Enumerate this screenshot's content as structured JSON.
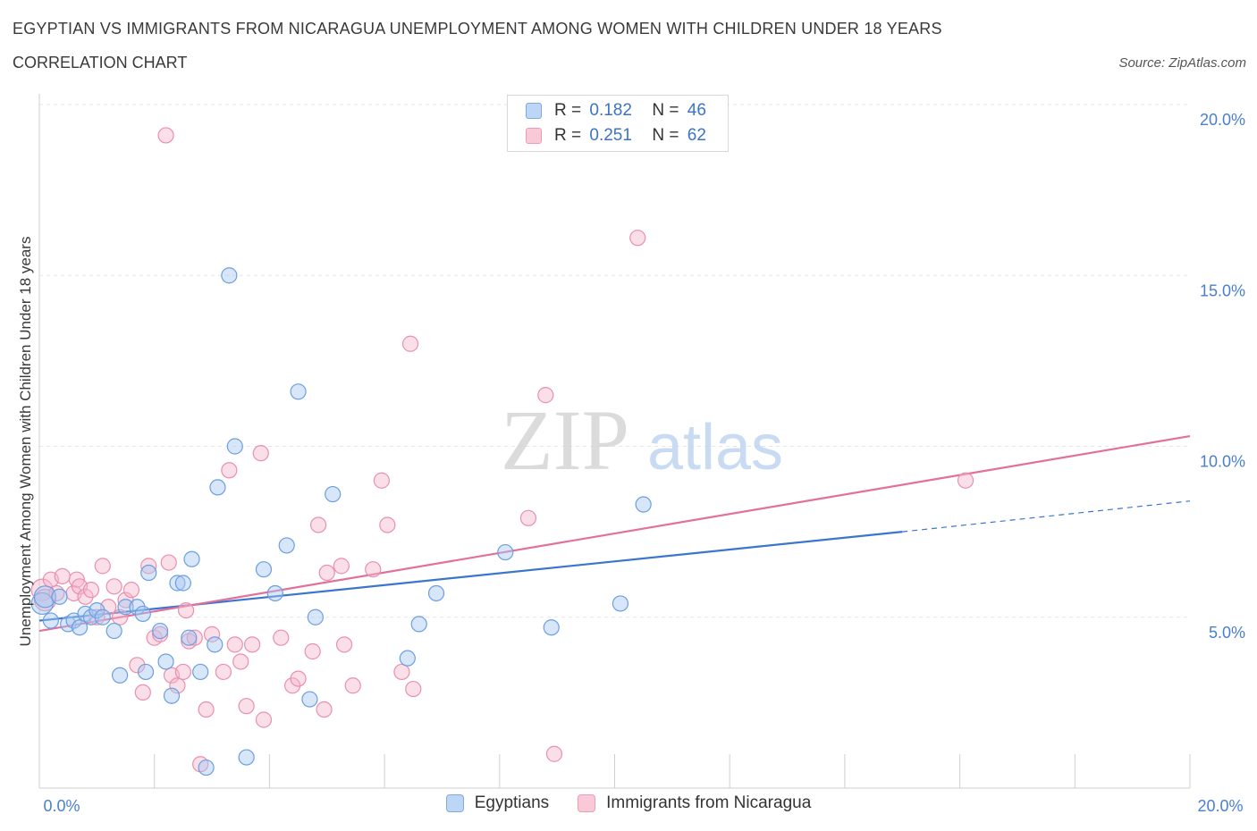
{
  "header": {
    "title": "EGYPTIAN VS IMMIGRANTS FROM NICARAGUA UNEMPLOYMENT AMONG WOMEN WITH CHILDREN UNDER 18 YEARS",
    "subtitle": "CORRELATION CHART",
    "source": "Source: ZipAtlas.com"
  },
  "watermark": {
    "zip": "ZIP",
    "atlas": "atlas"
  },
  "legend": {
    "rows": [
      {
        "r_label": "R =",
        "r_value": "0.182",
        "n_label": "N =",
        "n_value": "46"
      },
      {
        "r_label": "R =",
        "r_value": "0.251",
        "n_label": "N =",
        "n_value": "62"
      }
    ]
  },
  "colors": {
    "blue_fill": "#a9c8f2",
    "blue_stroke": "#6b9fe0",
    "blue_line": "#3b76cc",
    "pink_fill": "#f6b8cc",
    "pink_stroke": "#ea8fae",
    "pink_line": "#e2709b",
    "grid": "#e6e6e6",
    "tick_text": "#4a7fd0"
  },
  "chart_data": {
    "type": "scatter",
    "title": "EGYPTIAN VS IMMIGRANTS FROM NICARAGUA UNEMPLOYMENT AMONG WOMEN WITH CHILDREN UNDER 18 YEARS",
    "ylabel": "Unemployment Among Women with Children Under 18 years",
    "xlabel": "",
    "xlim": [
      0,
      20
    ],
    "ylim": [
      0,
      20
    ],
    "y_ticks": [
      5,
      10,
      15,
      20
    ],
    "y_tick_labels": [
      "5.0%",
      "10.0%",
      "15.0%",
      "20.0%"
    ],
    "x_tick_labels": [
      "0.0%",
      "20.0%"
    ],
    "grid": true,
    "legend_position": "bottom",
    "series": [
      {
        "name": "Egyptians",
        "color": "#a9c8f2",
        "r": 0.182,
        "n": 46,
        "trend": {
          "x0": 0,
          "y0": 4.9,
          "x1": 15.0,
          "y1": 7.5,
          "dash_to_x": 20,
          "dash_to_y": 8.4
        },
        "points": [
          [
            0.05,
            5.4
          ],
          [
            0.1,
            5.6
          ],
          [
            0.2,
            4.9
          ],
          [
            0.35,
            5.6
          ],
          [
            0.5,
            4.8
          ],
          [
            0.6,
            4.9
          ],
          [
            0.7,
            4.7
          ],
          [
            0.8,
            5.1
          ],
          [
            0.9,
            5.0
          ],
          [
            1.0,
            5.2
          ],
          [
            1.1,
            5.0
          ],
          [
            1.3,
            4.6
          ],
          [
            1.4,
            3.3
          ],
          [
            1.5,
            5.3
          ],
          [
            1.7,
            5.3
          ],
          [
            1.8,
            5.1
          ],
          [
            1.85,
            3.4
          ],
          [
            1.9,
            6.3
          ],
          [
            2.1,
            4.6
          ],
          [
            2.2,
            3.7
          ],
          [
            2.3,
            2.7
          ],
          [
            2.4,
            6.0
          ],
          [
            2.5,
            6.0
          ],
          [
            2.6,
            4.4
          ],
          [
            2.65,
            6.7
          ],
          [
            2.8,
            3.4
          ],
          [
            2.9,
            0.6
          ],
          [
            3.05,
            4.2
          ],
          [
            3.1,
            8.8
          ],
          [
            3.3,
            15.0
          ],
          [
            3.4,
            10.0
          ],
          [
            3.6,
            0.9
          ],
          [
            3.9,
            6.4
          ],
          [
            4.1,
            5.7
          ],
          [
            4.3,
            7.1
          ],
          [
            4.5,
            11.6
          ],
          [
            4.7,
            2.6
          ],
          [
            4.8,
            5.0
          ],
          [
            5.1,
            8.6
          ],
          [
            6.4,
            3.8
          ],
          [
            6.6,
            4.8
          ],
          [
            6.9,
            5.7
          ],
          [
            8.1,
            6.9
          ],
          [
            8.9,
            4.7
          ],
          [
            10.1,
            5.4
          ],
          [
            10.5,
            8.3
          ]
        ]
      },
      {
        "name": "Immigrants from Nicaragua",
        "color": "#f6b8cc",
        "r": 0.251,
        "n": 62,
        "trend": {
          "x0": 0,
          "y0": 4.6,
          "x1": 20,
          "y1": 10.3
        },
        "points": [
          [
            0.05,
            5.8
          ],
          [
            0.1,
            5.5
          ],
          [
            0.2,
            6.1
          ],
          [
            0.3,
            5.7
          ],
          [
            0.4,
            6.2
          ],
          [
            0.6,
            5.7
          ],
          [
            0.65,
            6.1
          ],
          [
            0.7,
            5.9
          ],
          [
            0.8,
            5.6
          ],
          [
            0.9,
            5.8
          ],
          [
            1.0,
            5.0
          ],
          [
            1.1,
            6.5
          ],
          [
            1.2,
            5.3
          ],
          [
            1.3,
            5.9
          ],
          [
            1.4,
            5.0
          ],
          [
            1.5,
            5.5
          ],
          [
            1.6,
            5.8
          ],
          [
            1.7,
            3.6
          ],
          [
            1.8,
            2.8
          ],
          [
            1.9,
            6.5
          ],
          [
            2.0,
            4.4
          ],
          [
            2.1,
            4.5
          ],
          [
            2.2,
            19.1
          ],
          [
            2.25,
            6.6
          ],
          [
            2.3,
            3.3
          ],
          [
            2.4,
            3.0
          ],
          [
            2.5,
            3.4
          ],
          [
            2.55,
            5.2
          ],
          [
            2.6,
            4.3
          ],
          [
            2.7,
            4.4
          ],
          [
            2.8,
            0.7
          ],
          [
            2.9,
            2.3
          ],
          [
            3.0,
            4.5
          ],
          [
            3.2,
            3.4
          ],
          [
            3.3,
            9.3
          ],
          [
            3.4,
            4.2
          ],
          [
            3.5,
            3.7
          ],
          [
            3.6,
            2.4
          ],
          [
            3.7,
            4.2
          ],
          [
            3.85,
            9.8
          ],
          [
            3.9,
            2.0
          ],
          [
            4.2,
            4.4
          ],
          [
            4.4,
            3.0
          ],
          [
            4.5,
            3.2
          ],
          [
            4.75,
            4.0
          ],
          [
            4.85,
            7.7
          ],
          [
            4.95,
            2.3
          ],
          [
            5.0,
            6.3
          ],
          [
            5.25,
            6.5
          ],
          [
            5.3,
            4.2
          ],
          [
            5.45,
            3.0
          ],
          [
            5.8,
            6.4
          ],
          [
            5.95,
            9.0
          ],
          [
            6.05,
            7.7
          ],
          [
            6.3,
            3.4
          ],
          [
            6.45,
            13.0
          ],
          [
            6.5,
            2.9
          ],
          [
            8.5,
            7.9
          ],
          [
            8.8,
            11.5
          ],
          [
            8.95,
            1.0
          ],
          [
            10.4,
            16.1
          ],
          [
            16.1,
            9.0
          ]
        ]
      }
    ]
  }
}
